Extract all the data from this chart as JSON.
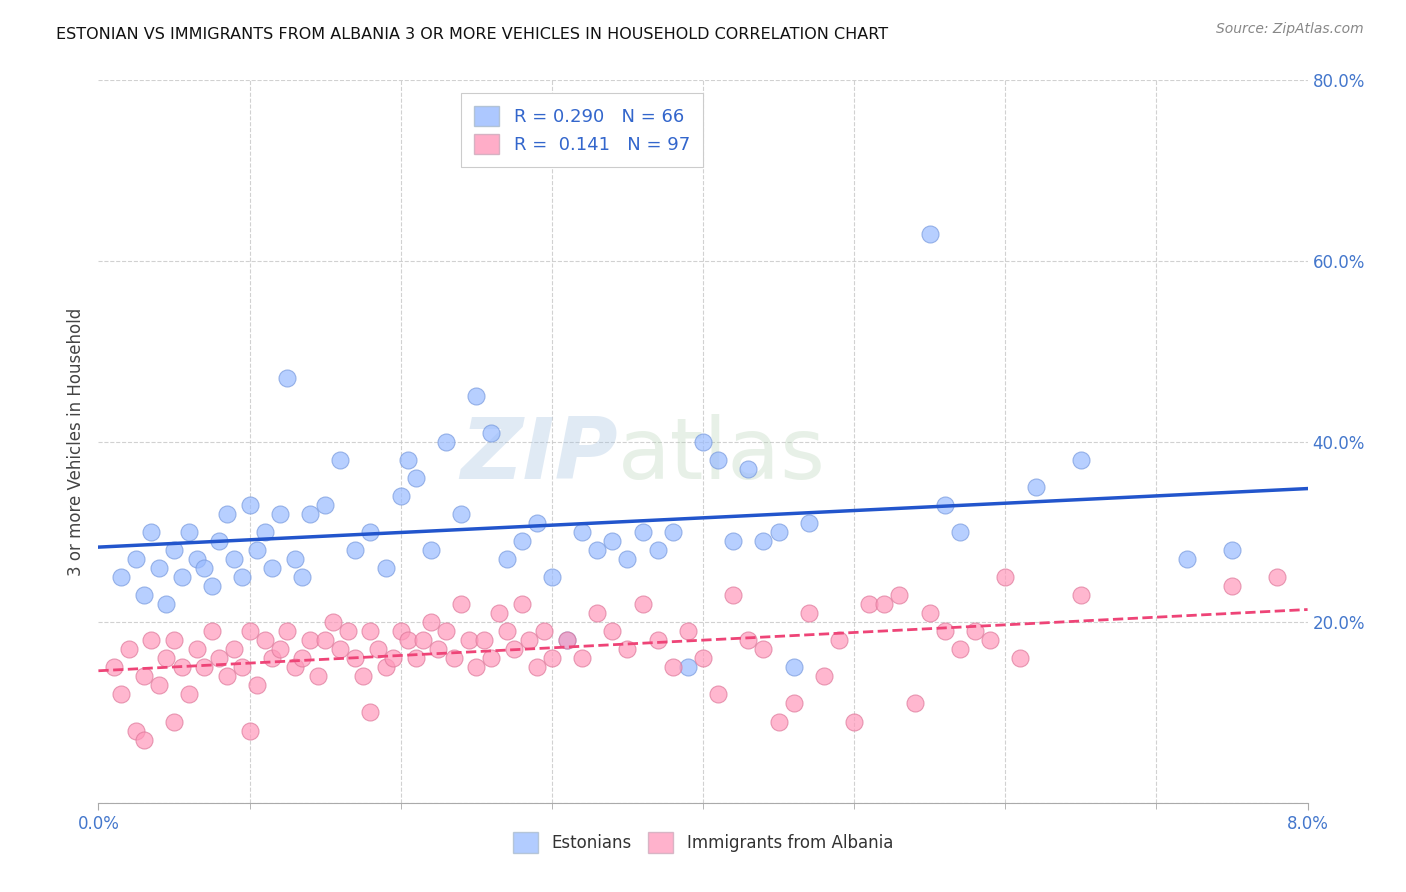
{
  "title": "ESTONIAN VS IMMIGRANTS FROM ALBANIA 3 OR MORE VEHICLES IN HOUSEHOLD CORRELATION CHART",
  "source": "Source: ZipAtlas.com",
  "ylabel": "3 or more Vehicles in Household",
  "xmin": 0.0,
  "xmax": 8.0,
  "ymin": 0.0,
  "ymax": 80.0,
  "yticks": [
    0,
    20,
    40,
    60,
    80
  ],
  "ytick_labels": [
    "",
    "20.0%",
    "40.0%",
    "60.0%",
    "80.0%"
  ],
  "xtick_minor": [
    1,
    2,
    3,
    4,
    5,
    6,
    7
  ],
  "blue_R": 0.29,
  "blue_N": 66,
  "pink_R": 0.141,
  "pink_N": 97,
  "blue_color": "#99bbff",
  "blue_edge": "#7799dd",
  "pink_color": "#ff99bb",
  "pink_edge": "#dd7799",
  "trend_blue_color": "#2255cc",
  "trend_pink_color": "#ee4477",
  "watermark_zip": "ZIP",
  "watermark_atlas": "atlas",
  "legend_label_blue": "Estonians",
  "legend_label_pink": "Immigrants from Albania",
  "blue_scatter": [
    [
      0.15,
      25.0
    ],
    [
      0.25,
      27.0
    ],
    [
      0.3,
      23.0
    ],
    [
      0.35,
      30.0
    ],
    [
      0.4,
      26.0
    ],
    [
      0.45,
      22.0
    ],
    [
      0.5,
      28.0
    ],
    [
      0.55,
      25.0
    ],
    [
      0.6,
      30.0
    ],
    [
      0.65,
      27.0
    ],
    [
      0.7,
      26.0
    ],
    [
      0.75,
      24.0
    ],
    [
      0.8,
      29.0
    ],
    [
      0.85,
      32.0
    ],
    [
      0.9,
      27.0
    ],
    [
      0.95,
      25.0
    ],
    [
      1.0,
      33.0
    ],
    [
      1.05,
      28.0
    ],
    [
      1.1,
      30.0
    ],
    [
      1.15,
      26.0
    ],
    [
      1.2,
      32.0
    ],
    [
      1.25,
      47.0
    ],
    [
      1.3,
      27.0
    ],
    [
      1.35,
      25.0
    ],
    [
      1.4,
      32.0
    ],
    [
      1.5,
      33.0
    ],
    [
      1.6,
      38.0
    ],
    [
      1.7,
      28.0
    ],
    [
      1.8,
      30.0
    ],
    [
      1.9,
      26.0
    ],
    [
      2.0,
      34.0
    ],
    [
      2.05,
      38.0
    ],
    [
      2.1,
      36.0
    ],
    [
      2.2,
      28.0
    ],
    [
      2.3,
      40.0
    ],
    [
      2.4,
      32.0
    ],
    [
      2.5,
      45.0
    ],
    [
      2.6,
      41.0
    ],
    [
      2.7,
      27.0
    ],
    [
      2.8,
      29.0
    ],
    [
      2.9,
      31.0
    ],
    [
      3.0,
      25.0
    ],
    [
      3.1,
      18.0
    ],
    [
      3.2,
      30.0
    ],
    [
      3.3,
      28.0
    ],
    [
      3.4,
      29.0
    ],
    [
      3.5,
      27.0
    ],
    [
      3.6,
      30.0
    ],
    [
      3.7,
      28.0
    ],
    [
      3.8,
      30.0
    ],
    [
      3.9,
      15.0
    ],
    [
      4.0,
      40.0
    ],
    [
      4.1,
      38.0
    ],
    [
      4.2,
      29.0
    ],
    [
      4.3,
      37.0
    ],
    [
      4.4,
      29.0
    ],
    [
      4.5,
      30.0
    ],
    [
      4.6,
      15.0
    ],
    [
      4.7,
      31.0
    ],
    [
      5.5,
      63.0
    ],
    [
      5.6,
      33.0
    ],
    [
      5.7,
      30.0
    ],
    [
      6.2,
      35.0
    ],
    [
      6.5,
      38.0
    ],
    [
      7.2,
      27.0
    ],
    [
      7.5,
      28.0
    ]
  ],
  "pink_scatter": [
    [
      0.1,
      15.0
    ],
    [
      0.15,
      12.0
    ],
    [
      0.2,
      17.0
    ],
    [
      0.25,
      8.0
    ],
    [
      0.3,
      14.0
    ],
    [
      0.35,
      18.0
    ],
    [
      0.4,
      13.0
    ],
    [
      0.45,
      16.0
    ],
    [
      0.5,
      18.0
    ],
    [
      0.55,
      15.0
    ],
    [
      0.6,
      12.0
    ],
    [
      0.65,
      17.0
    ],
    [
      0.7,
      15.0
    ],
    [
      0.75,
      19.0
    ],
    [
      0.8,
      16.0
    ],
    [
      0.85,
      14.0
    ],
    [
      0.9,
      17.0
    ],
    [
      0.95,
      15.0
    ],
    [
      1.0,
      19.0
    ],
    [
      1.05,
      13.0
    ],
    [
      1.1,
      18.0
    ],
    [
      1.15,
      16.0
    ],
    [
      1.2,
      17.0
    ],
    [
      1.25,
      19.0
    ],
    [
      1.3,
      15.0
    ],
    [
      1.35,
      16.0
    ],
    [
      1.4,
      18.0
    ],
    [
      1.45,
      14.0
    ],
    [
      1.5,
      18.0
    ],
    [
      1.55,
      20.0
    ],
    [
      1.6,
      17.0
    ],
    [
      1.65,
      19.0
    ],
    [
      1.7,
      16.0
    ],
    [
      1.75,
      14.0
    ],
    [
      1.8,
      19.0
    ],
    [
      1.85,
      17.0
    ],
    [
      1.9,
      15.0
    ],
    [
      1.95,
      16.0
    ],
    [
      2.0,
      19.0
    ],
    [
      2.05,
      18.0
    ],
    [
      2.1,
      16.0
    ],
    [
      2.15,
      18.0
    ],
    [
      2.2,
      20.0
    ],
    [
      2.25,
      17.0
    ],
    [
      2.3,
      19.0
    ],
    [
      2.35,
      16.0
    ],
    [
      2.4,
      22.0
    ],
    [
      2.45,
      18.0
    ],
    [
      2.5,
      15.0
    ],
    [
      2.55,
      18.0
    ],
    [
      2.6,
      16.0
    ],
    [
      2.65,
      21.0
    ],
    [
      2.7,
      19.0
    ],
    [
      2.75,
      17.0
    ],
    [
      2.8,
      22.0
    ],
    [
      2.85,
      18.0
    ],
    [
      2.9,
      15.0
    ],
    [
      2.95,
      19.0
    ],
    [
      3.0,
      16.0
    ],
    [
      3.1,
      18.0
    ],
    [
      3.2,
      16.0
    ],
    [
      3.3,
      21.0
    ],
    [
      3.4,
      19.0
    ],
    [
      3.5,
      17.0
    ],
    [
      3.6,
      22.0
    ],
    [
      3.7,
      18.0
    ],
    [
      3.8,
      15.0
    ],
    [
      3.9,
      19.0
    ],
    [
      4.0,
      16.0
    ],
    [
      4.1,
      12.0
    ],
    [
      4.2,
      23.0
    ],
    [
      4.3,
      18.0
    ],
    [
      4.4,
      17.0
    ],
    [
      4.5,
      9.0
    ],
    [
      4.6,
      11.0
    ],
    [
      4.7,
      21.0
    ],
    [
      4.8,
      14.0
    ],
    [
      4.9,
      18.0
    ],
    [
      5.0,
      9.0
    ],
    [
      5.1,
      22.0
    ],
    [
      5.2,
      22.0
    ],
    [
      5.3,
      23.0
    ],
    [
      5.4,
      11.0
    ],
    [
      5.5,
      21.0
    ],
    [
      5.6,
      19.0
    ],
    [
      5.7,
      17.0
    ],
    [
      5.8,
      19.0
    ],
    [
      5.9,
      18.0
    ],
    [
      6.0,
      25.0
    ],
    [
      6.1,
      16.0
    ],
    [
      6.5,
      23.0
    ],
    [
      7.5,
      24.0
    ],
    [
      7.8,
      25.0
    ],
    [
      0.3,
      7.0
    ],
    [
      0.5,
      9.0
    ],
    [
      1.0,
      8.0
    ],
    [
      1.8,
      10.0
    ]
  ]
}
